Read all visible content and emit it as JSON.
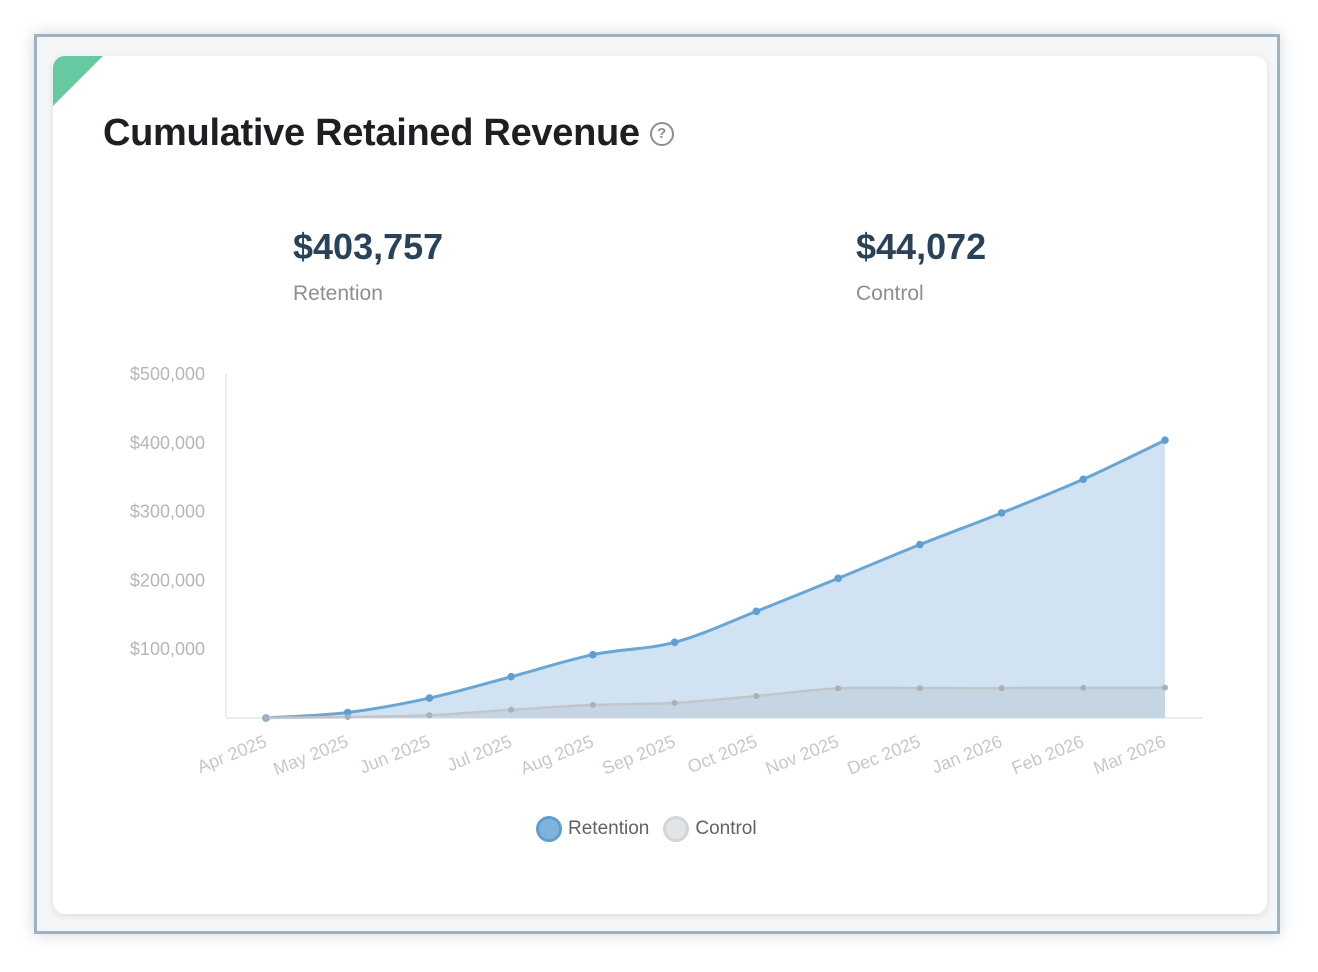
{
  "card": {
    "title": "Cumulative Retained Revenue",
    "help_icon": "help-circle-icon",
    "stats": [
      {
        "value": "$403,757",
        "label": "Retention"
      },
      {
        "value": "$44,072",
        "label": "Control"
      }
    ],
    "accent_color": "#66c9a1"
  },
  "chart_data": {
    "type": "area",
    "categories": [
      "Apr 2025",
      "May 2025",
      "Jun 2025",
      "Jul 2025",
      "Aug 2025",
      "Sep 2025",
      "Oct 2025",
      "Nov 2025",
      "Dec 2025",
      "Jan 2026",
      "Feb 2026",
      "Mar 2026"
    ],
    "yticks": [
      "$500,000",
      "$400,000",
      "$300,000",
      "$200,000",
      "$100,000"
    ],
    "ytick_values": [
      500000,
      400000,
      300000,
      200000,
      100000
    ],
    "ylim": [
      0,
      500000
    ],
    "series": [
      {
        "name": "Retention",
        "color": "#6aa6d3",
        "fill": "#d1e3f3",
        "values": [
          0,
          8000,
          29000,
          60000,
          92000,
          110000,
          155000,
          203000,
          252000,
          298000,
          347000,
          403757
        ]
      },
      {
        "name": "Control",
        "color": "#c2c6ca",
        "fill": "#c3d2e0",
        "values": [
          0,
          1500,
          4000,
          12000,
          19000,
          22000,
          32000,
          43000,
          43500,
          43500,
          43800,
          44072
        ]
      }
    ],
    "legend_position": "bottom"
  }
}
